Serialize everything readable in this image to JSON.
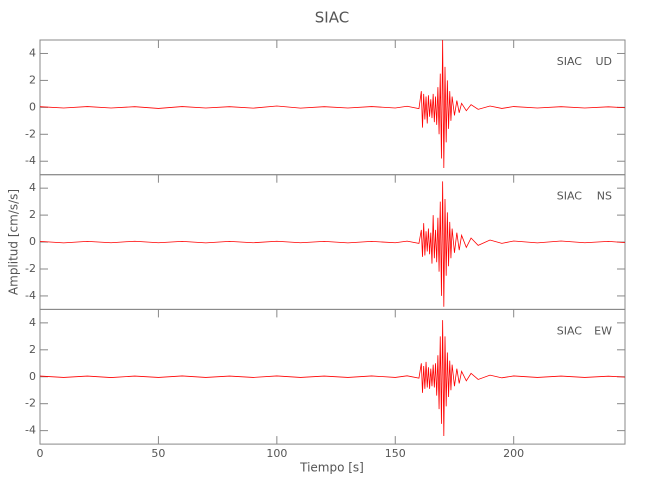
{
  "chart_data": {
    "type": "line",
    "title": "SIAC",
    "xlabel": "Tiempo [s]",
    "ylabel": "Amplitud [cm/s/s]",
    "station": "SIAC",
    "color": "#ff0000",
    "x": [
      0,
      10,
      20,
      30,
      40,
      50,
      60,
      70,
      80,
      90,
      100,
      110,
      120,
      130,
      140,
      150,
      155,
      160,
      161,
      161.5,
      162,
      162.5,
      163,
      163.5,
      164,
      164.5,
      165,
      165.5,
      166,
      166.5,
      167,
      167.5,
      168,
      168.5,
      169,
      169.5,
      170,
      170.5,
      171,
      171.5,
      172,
      172.5,
      173,
      173.5,
      174,
      175,
      176,
      177,
      178,
      180,
      182,
      185,
      190,
      195,
      200,
      210,
      220,
      230,
      240,
      247
    ],
    "xlim": [
      0,
      247
    ],
    "xticks": [
      0,
      50,
      100,
      150,
      200
    ],
    "ylim": [
      -5,
      5
    ],
    "yticks": [
      -4,
      -2,
      0,
      2,
      4
    ],
    "series": [
      {
        "name": "UD",
        "values": [
          0.05,
          -0.05,
          0.06,
          -0.05,
          0.05,
          -0.08,
          0.06,
          -0.05,
          0.05,
          -0.06,
          0.1,
          -0.06,
          0.05,
          -0.05,
          0.06,
          -0.05,
          0.08,
          -0.1,
          1.2,
          -1.5,
          1.0,
          -0.9,
          0.8,
          -1.2,
          0.9,
          -0.7,
          0.6,
          -0.8,
          1.0,
          -1.1,
          0.8,
          -1.3,
          1.5,
          -2.0,
          2.5,
          -3.8,
          5.0,
          -4.5,
          3.0,
          -2.6,
          2.0,
          -1.6,
          1.2,
          -1.0,
          0.8,
          -0.6,
          0.5,
          -0.4,
          0.3,
          -0.25,
          0.2,
          -0.15,
          0.1,
          -0.08,
          0.06,
          -0.05,
          0.05,
          -0.05,
          0.04,
          -0.03
        ]
      },
      {
        "name": "NS",
        "values": [
          0.05,
          -0.06,
          0.05,
          -0.05,
          0.06,
          -0.05,
          0.05,
          -0.06,
          0.05,
          -0.05,
          0.06,
          -0.05,
          0.05,
          -0.06,
          0.05,
          -0.05,
          0.07,
          -0.1,
          0.9,
          -1.1,
          1.4,
          -1.0,
          0.8,
          -0.7,
          1.0,
          -0.9,
          0.7,
          -1.6,
          2.0,
          -1.2,
          0.9,
          -1.5,
          1.8,
          -2.2,
          3.0,
          -4.0,
          4.5,
          -4.8,
          3.2,
          -2.5,
          2.2,
          -1.8,
          1.5,
          -1.2,
          1.0,
          -0.8,
          0.7,
          -0.6,
          0.5,
          -0.4,
          0.3,
          -0.25,
          0.15,
          -0.1,
          0.08,
          -0.06,
          0.08,
          -0.05,
          0.05,
          -0.04
        ]
      },
      {
        "name": "EW",
        "values": [
          0.05,
          -0.05,
          0.05,
          -0.06,
          0.05,
          -0.05,
          0.06,
          -0.05,
          0.05,
          -0.05,
          0.06,
          -0.05,
          0.05,
          -0.05,
          0.06,
          -0.05,
          0.07,
          -0.1,
          1.0,
          -1.2,
          0.8,
          -0.9,
          1.1,
          -0.8,
          0.7,
          -0.9,
          0.6,
          -0.7,
          0.9,
          -0.8,
          1.0,
          -1.4,
          1.6,
          -2.4,
          3.0,
          -3.5,
          4.2,
          -4.4,
          3.0,
          -2.2,
          1.8,
          -1.5,
          1.2,
          -1.0,
          0.9,
          -0.7,
          0.6,
          -0.5,
          0.4,
          -0.3,
          0.25,
          -0.2,
          0.12,
          -0.08,
          0.06,
          -0.05,
          0.05,
          -0.05,
          0.04,
          -0.03
        ]
      }
    ]
  }
}
